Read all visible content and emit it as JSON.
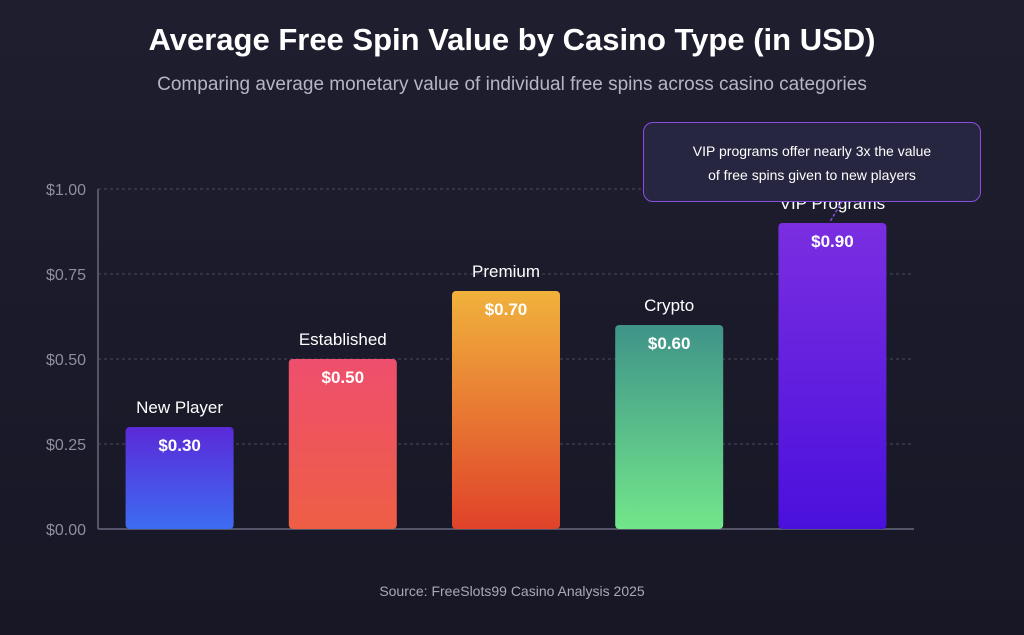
{
  "chart_data": {
    "type": "bar",
    "title": "Average Free Spin Value by Casino Type (in USD)",
    "subtitle": "Comparing average monetary value of individual free spins across casino categories",
    "categories": [
      "New Player",
      "Established",
      "Premium",
      "Crypto",
      "VIP Programs"
    ],
    "values": [
      0.3,
      0.5,
      0.7,
      0.6,
      0.9
    ],
    "value_labels": [
      "$0.30",
      "$0.50",
      "$0.70",
      "$0.60",
      "$0.90"
    ],
    "y_ticks": [
      {
        "value": 0,
        "label": "$0.00"
      },
      {
        "value": 0.25,
        "label": "$0.25"
      },
      {
        "value": 0.5,
        "label": "$0.50"
      },
      {
        "value": 0.75,
        "label": "$0.75"
      },
      {
        "value": 1.0,
        "label": "$1.00"
      }
    ],
    "ylim": [
      0,
      1.0
    ],
    "grid": true,
    "bar_colors": [
      {
        "top": "#5b2ad8",
        "bottom": "#3d6cf2"
      },
      {
        "top": "#ee4f6d",
        "bottom": "#ee5e45"
      },
      {
        "top": "#f0b23c",
        "bottom": "#e0422a"
      },
      {
        "top": "#3f9389",
        "bottom": "#72e68a"
      },
      {
        "top": "#7a2ee0",
        "bottom": "#4a10dd"
      }
    ],
    "annotation": {
      "line1": "VIP programs offer nearly 3x the value",
      "line2": "of free spins given to new players",
      "target_category": "VIP Programs"
    },
    "source": "Source: FreeSlots99 Casino Analysis 2025"
  }
}
